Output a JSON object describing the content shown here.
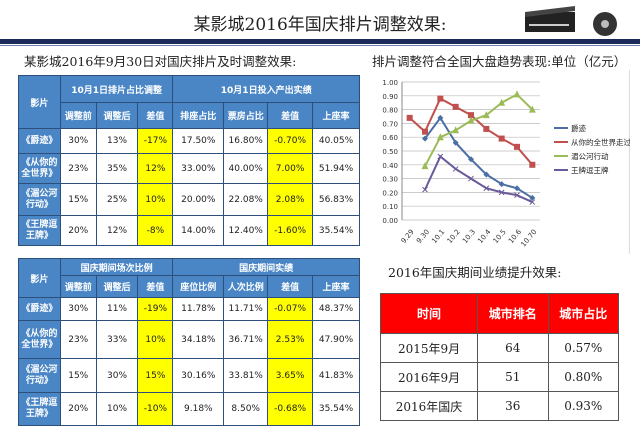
{
  "title": "某影城2016年国庆排片调整效果:",
  "left_title": "某影城2016年9月30日对国庆排片及时调整效果:",
  "right_title": "排片调整符合全国大盘趋势表现:单位（亿元）",
  "bottom_right_title": "2016年国庆期间业绩提升效果:",
  "table1": {
    "film_header": "影片",
    "group1": "10月1日排片占比调整",
    "group2": "10月1日投入产出实绩",
    "cols": [
      "调整前",
      "调整后",
      "差值",
      "排座占比",
      "票房占比",
      "差值",
      "上座率"
    ],
    "rows": [
      {
        "film": "《爵迹》",
        "cells": [
          "30%",
          "13%",
          "-17%",
          "17.50%",
          "16.80%",
          "-0.70%",
          "40.05%"
        ]
      },
      {
        "film": "《从你的全世界》",
        "cells": [
          "23%",
          "35%",
          "12%",
          "33.00%",
          "40.00%",
          "7.00%",
          "51.94%"
        ]
      },
      {
        "film": "《湄公河行动》",
        "cells": [
          "15%",
          "25%",
          "10%",
          "20.00%",
          "22.08%",
          "2.08%",
          "56.83%"
        ]
      },
      {
        "film": "《王牌逗王牌》",
        "cells": [
          "20%",
          "12%",
          "-8%",
          "14.00%",
          "12.40%",
          "-1.60%",
          "35.54%"
        ]
      }
    ]
  },
  "table2": {
    "film_header": "影片",
    "group1": "国庆期间场次比例",
    "group2": "国庆期间实绩",
    "cols": [
      "调整前",
      "调整后",
      "差值",
      "座位比例",
      "人次比例",
      "差值",
      "上座率"
    ],
    "rows": [
      {
        "film": "《爵迹》",
        "cells": [
          "30%",
          "11%",
          "-19%",
          "11.78%",
          "11.71%",
          "-0.07%",
          "48.37%"
        ]
      },
      {
        "film": "《从你的全世界》",
        "cells": [
          "23%",
          "33%",
          "10%",
          "34.18%",
          "36.71%",
          "2.53%",
          "47.90%"
        ]
      },
      {
        "film": "《湄公河行动》",
        "cells": [
          "15%",
          "30%",
          "15%",
          "30.16%",
          "33.81%",
          "3.65%",
          "41.83%"
        ]
      },
      {
        "film": "《王牌逗王牌》",
        "cells": [
          "20%",
          "10%",
          "-10%",
          "9.18%",
          "8.50%",
          "-0.68%",
          "35.54%"
        ]
      }
    ]
  },
  "table3": {
    "cols": [
      "时间",
      "城市排名",
      "城市占比"
    ],
    "rows": [
      [
        "2015年9月",
        "64",
        "0.57%"
      ],
      [
        "2016年9月",
        "51",
        "0.80%"
      ],
      [
        "2016年国庆",
        "36",
        "0.93%"
      ]
    ]
  },
  "highlight_color": "#ffff00",
  "header_color": "#4a86c5",
  "red_header": "#ff0000",
  "chart_data": {
    "type": "line",
    "categories": [
      "9.29",
      "9.30",
      "10.1",
      "10.2",
      "10.3",
      "10.4",
      "10.5",
      "10.6",
      "10.70"
    ],
    "ylim": [
      0,
      1.0
    ],
    "yticks": [
      "0.00",
      "0.10",
      "0.20",
      "0.30",
      "0.40",
      "0.50",
      "0.60",
      "0.70",
      "0.80",
      "0.90",
      "1.00"
    ],
    "grid": true,
    "legend": "right",
    "series": [
      {
        "name": "爵迹",
        "color": "#4a6fa5",
        "marker": "diamond",
        "values": [
          null,
          0.59,
          0.74,
          0.56,
          0.44,
          0.33,
          0.26,
          0.23,
          0.16
        ]
      },
      {
        "name": "从你的全世界走过",
        "color": "#c0504d",
        "marker": "square",
        "values": [
          0.74,
          0.64,
          0.88,
          0.82,
          0.76,
          0.66,
          0.59,
          0.53,
          0.4
        ]
      },
      {
        "name": "湄公河行动",
        "color": "#9bbb59",
        "marker": "triangle",
        "values": [
          null,
          0.39,
          0.6,
          0.65,
          0.72,
          0.76,
          0.85,
          0.91,
          0.8
        ]
      },
      {
        "name": "王牌逗王牌",
        "color": "#6a5a9a",
        "marker": "x",
        "values": [
          null,
          0.22,
          0.46,
          0.37,
          0.3,
          0.23,
          0.2,
          0.18,
          0.13
        ]
      }
    ]
  }
}
